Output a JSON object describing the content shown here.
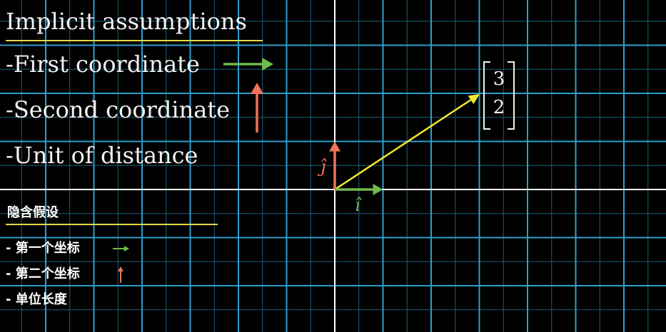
{
  "english": {
    "title": "Implicit assumptions",
    "first": "-First coordinate",
    "second": "-Second coordinate",
    "unit": "-Unit of distance"
  },
  "chinese": {
    "title": "隐含假设",
    "first": "- 第一个坐标",
    "second": "- 第二个坐标",
    "unit": "- 单位长度"
  },
  "vector": {
    "label": "[3, 2]",
    "x": 3,
    "y": 2
  },
  "basis": {
    "i_hat": "î",
    "j_hat": "ĵ"
  },
  "colors": {
    "grid": "#2f9fcf",
    "grid_minor": "#1c5f7c",
    "axes": "#ffffff",
    "vector": "#f0e832",
    "i_hat": "#6dbb4e",
    "j_hat": "#f0735a",
    "underline": "#e6d94a"
  },
  "icons": [
    "green-arrow-right-icon",
    "red-arrow-up-icon"
  ]
}
